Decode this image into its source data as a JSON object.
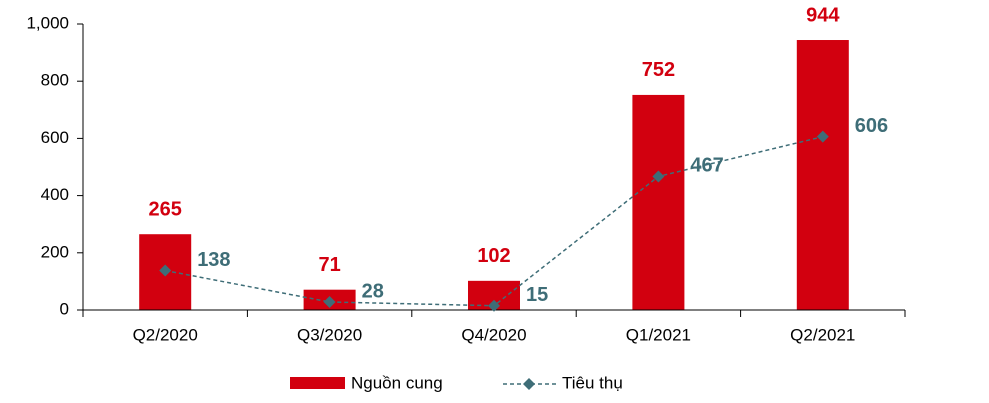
{
  "chart_data": {
    "type": "combo",
    "categories": [
      "Q2/2020",
      "Q3/2020",
      "Q4/2020",
      "Q1/2021",
      "Q2/2021"
    ],
    "series": [
      {
        "name": "Nguồn cung",
        "type": "bar",
        "color": "#d2000f",
        "values": [
          265,
          71,
          102,
          752,
          944
        ]
      },
      {
        "name": "Tiêu thụ",
        "type": "line",
        "color": "#3e6d77",
        "values": [
          138,
          28,
          15,
          467,
          606
        ]
      }
    ],
    "ylim": [
      0,
      1000
    ],
    "yticks": [
      0,
      200,
      400,
      600,
      800,
      {
        "value": 1000,
        "label": "1,000"
      }
    ],
    "legend": "bottom"
  }
}
